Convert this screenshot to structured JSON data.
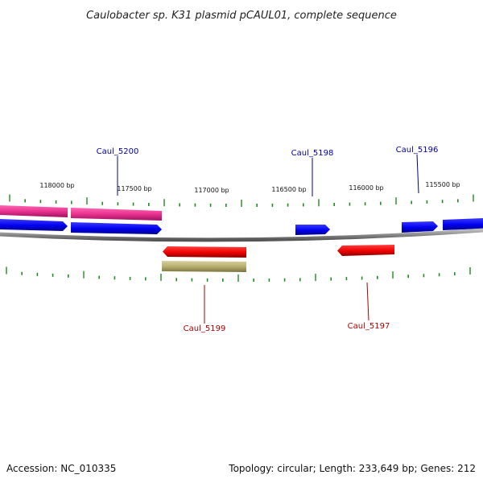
{
  "title": "Caulobacter sp. K31 plasmid pCAUL01, complete sequence",
  "footer": {
    "accession": "Accession: NC_010335",
    "summary": "Topology: circular; Length: 233,649 bp; Genes: 212"
  },
  "colors": {
    "forward_cds": "#0000ee",
    "reverse_cds": "#ee0000",
    "forward_feature": "#e8338f",
    "reverse_feature": "#b8b070",
    "backbone": "#888888",
    "ticks": "#228b22",
    "forward_label": "#000099",
    "reverse_label": "#aa0000"
  },
  "chart_data": {
    "type": "circular-genome-map",
    "axis": {
      "tick_labels": [
        "118000 bp",
        "117500 bp",
        "117000 bp",
        "116500 bp",
        "116000 bp",
        "115500 bp"
      ]
    },
    "genes": [
      {
        "name": "Caul_5200",
        "strand": "forward"
      },
      {
        "name": "Caul_5199",
        "strand": "reverse"
      },
      {
        "name": "Caul_5198",
        "strand": "forward"
      },
      {
        "name": "Caul_5197",
        "strand": "reverse"
      },
      {
        "name": "Caul_5196",
        "strand": "forward"
      }
    ]
  }
}
